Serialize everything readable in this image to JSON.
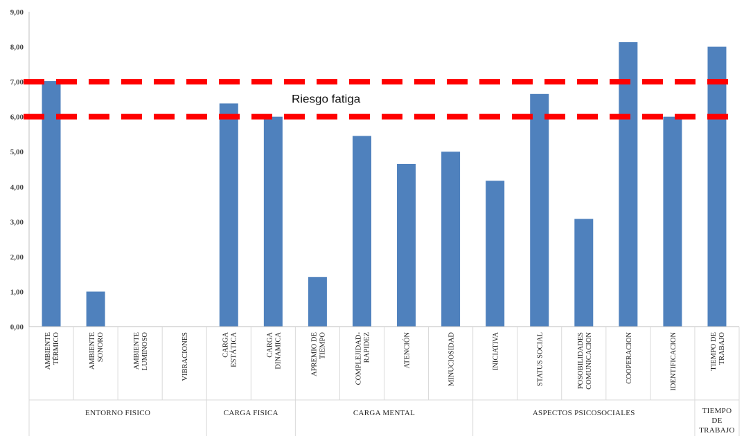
{
  "chart_data": {
    "type": "bar",
    "title": "",
    "xlabel": "",
    "ylabel": "",
    "ylim": [
      0,
      9
    ],
    "y_ticks": [
      "0,00",
      "1,00",
      "2,00",
      "3,00",
      "4,00",
      "5,00",
      "6,00",
      "7,00",
      "8,00",
      "9,00"
    ],
    "grid": false,
    "categories": [
      [
        "AMBIENTE",
        "TÉRMICO"
      ],
      [
        "AMBIENTE",
        "SONORO"
      ],
      [
        "AMBIENTE",
        "LUMINOSO"
      ],
      [
        "VIBRACIONES"
      ],
      [
        "CARGA",
        "ESTÁTICA"
      ],
      [
        "CARGA",
        "DINAMICA"
      ],
      [
        "APREMIO DE",
        "TIEMPO"
      ],
      [
        "COMPLEJIDAD-",
        "RAPIDEZ"
      ],
      [
        "ATENCIÓN"
      ],
      [
        "MINUCIOSIDAD"
      ],
      [
        "INICIATIVA"
      ],
      [
        "STATUS SOCIAL"
      ],
      [
        "POSOBILIDADES",
        "COMUNICACION"
      ],
      [
        "COOPERACION"
      ],
      [
        "IDENTIFICACION"
      ],
      [
        "TIEMPO DE",
        "TRABAJO"
      ]
    ],
    "values": [
      7.02,
      1.0,
      0,
      0,
      6.38,
      6.0,
      1.42,
      5.45,
      4.65,
      5.0,
      4.17,
      6.65,
      3.08,
      8.13,
      6.0,
      8.0
    ],
    "bar_color": "#4f81bd",
    "groups": [
      {
        "label": [
          "ENTORNO FISICO"
        ],
        "start": 0,
        "end": 3
      },
      {
        "label": [
          "CARGA FISICA"
        ],
        "start": 4,
        "end": 5
      },
      {
        "label": [
          "CARGA MENTAL"
        ],
        "start": 6,
        "end": 9
      },
      {
        "label": [
          "ASPECTOS PSICOSOCIALES"
        ],
        "start": 10,
        "end": 14
      },
      {
        "label": [
          "TIEMPO",
          "DE",
          "TRABAJO"
        ],
        "start": 15,
        "end": 15
      }
    ],
    "reference_lines": [
      {
        "y": 7,
        "color": "#ff0000",
        "style": "dashed"
      },
      {
        "y": 6,
        "color": "#ff0000",
        "style": "dashed"
      }
    ],
    "annotations": [
      {
        "text": "Riesgo fatiga",
        "y": 6.5
      }
    ]
  }
}
